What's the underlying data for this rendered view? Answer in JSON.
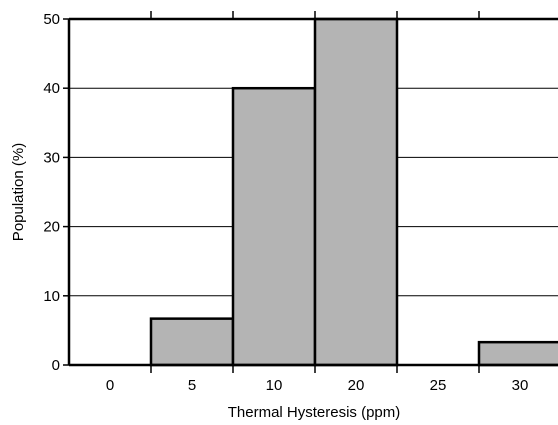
{
  "colors": {
    "bar_fill": "#b4b4b4",
    "bar_stroke": "#000000",
    "grid": "#000000",
    "background": "#ffffff"
  },
  "chart_data": {
    "type": "bar",
    "title": "",
    "xlabel": "Thermal Hysteresis (ppm)",
    "ylabel": "Population (%)",
    "categories": [
      "0",
      "5",
      "10",
      "20",
      "25",
      "30"
    ],
    "values": [
      0,
      6.7,
      40,
      50,
      0,
      3.3
    ],
    "ylim": [
      0,
      50
    ],
    "yticks": [
      0,
      10,
      20,
      30,
      40,
      50
    ],
    "grid": "horizontal",
    "legend": "none"
  }
}
